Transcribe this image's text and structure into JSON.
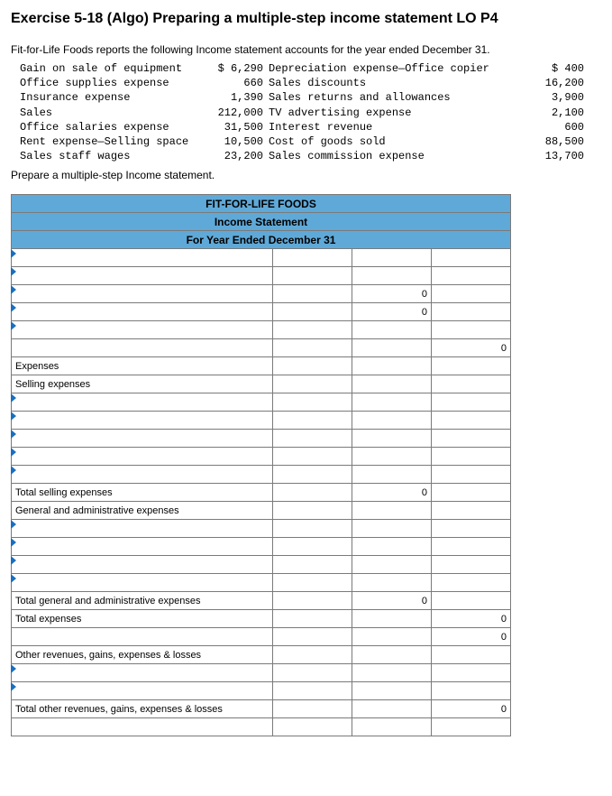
{
  "title": "Exercise 5-18 (Algo) Preparing a multiple-step income statement LO P4",
  "intro": "Fit-for-Life Foods reports the following Income statement accounts for the year ended December 31.",
  "accounts": {
    "left": [
      {
        "label": "Gain on sale of equipment",
        "value": "$ 6,290"
      },
      {
        "label": "Office supplies expense",
        "value": "660"
      },
      {
        "label": "Insurance expense",
        "value": "1,390"
      },
      {
        "label": "Sales",
        "value": "212,000"
      },
      {
        "label": "Office salaries expense",
        "value": "31,500"
      },
      {
        "label": "Rent expense—Selling space",
        "value": "10,500"
      },
      {
        "label": "Sales staff wages",
        "value": "23,200"
      }
    ],
    "right": [
      {
        "label": "Depreciation expense—Office copier",
        "value": "$ 400"
      },
      {
        "label": "Sales discounts",
        "value": "16,200"
      },
      {
        "label": "Sales returns and allowances",
        "value": "3,900"
      },
      {
        "label": "TV advertising expense",
        "value": "2,100"
      },
      {
        "label": "Interest revenue",
        "value": "600"
      },
      {
        "label": "Cost of goods sold",
        "value": "88,500"
      },
      {
        "label": "Sales commission expense",
        "value": "13,700"
      }
    ]
  },
  "prepare": "Prepare a multiple-step Income statement.",
  "statement": {
    "header": {
      "company": "FIT-FOR-LIFE FOODS",
      "title": "Income Statement",
      "period": "For Year Ended December 31"
    },
    "rows": [
      {
        "label": "",
        "drop": true,
        "a": "",
        "b": "",
        "c": ""
      },
      {
        "label": "",
        "drop": true,
        "a": "",
        "b": "",
        "c": ""
      },
      {
        "label": "",
        "drop": true,
        "a": "",
        "b": "0",
        "c": ""
      },
      {
        "label": "",
        "drop": true,
        "a": "",
        "b": "0",
        "c": ""
      },
      {
        "label": "",
        "drop": true,
        "a": "",
        "b": "",
        "c": ""
      },
      {
        "label": "",
        "drop": false,
        "a": "",
        "b": "",
        "c": "0"
      },
      {
        "label": "Expenses",
        "drop": false,
        "a": "",
        "b": "",
        "c": ""
      },
      {
        "label": "Selling expenses",
        "drop": false,
        "a": "",
        "b": "",
        "c": ""
      },
      {
        "label": "",
        "drop": true,
        "a": "",
        "b": "",
        "c": ""
      },
      {
        "label": "",
        "drop": true,
        "a": "",
        "b": "",
        "c": ""
      },
      {
        "label": "",
        "drop": true,
        "a": "",
        "b": "",
        "c": ""
      },
      {
        "label": "",
        "drop": true,
        "a": "",
        "b": "",
        "c": ""
      },
      {
        "label": "",
        "drop": true,
        "a": "",
        "b": "",
        "c": ""
      },
      {
        "label": "Total selling expenses",
        "indent": true,
        "drop": false,
        "a": "",
        "b": "0",
        "c": ""
      },
      {
        "label": "General and administrative expenses",
        "drop": false,
        "a": "",
        "b": "",
        "c": ""
      },
      {
        "label": "",
        "drop": true,
        "a": "",
        "b": "",
        "c": ""
      },
      {
        "label": "",
        "drop": true,
        "a": "",
        "b": "",
        "c": ""
      },
      {
        "label": "",
        "drop": true,
        "a": "",
        "b": "",
        "c": ""
      },
      {
        "label": "",
        "drop": true,
        "a": "",
        "b": "",
        "c": ""
      },
      {
        "label": "Total general and administrative expenses",
        "indent": true,
        "drop": false,
        "a": "",
        "b": "0",
        "c": ""
      },
      {
        "label": "Total expenses",
        "drop": false,
        "a": "",
        "b": "",
        "c": "0"
      },
      {
        "label": "",
        "drop": false,
        "a": "",
        "b": "",
        "c": "0"
      },
      {
        "label": "Other revenues, gains, expenses & losses",
        "drop": false,
        "a": "",
        "b": "",
        "c": ""
      },
      {
        "label": "",
        "drop": true,
        "a": "",
        "b": "",
        "c": ""
      },
      {
        "label": "",
        "drop": true,
        "a": "",
        "b": "",
        "c": ""
      },
      {
        "label": "Total other revenues, gains, expenses & losses",
        "indent": true,
        "drop": false,
        "a": "",
        "b": "",
        "c": "0"
      },
      {
        "label": "",
        "drop": false,
        "a": "",
        "b": "",
        "c": ""
      }
    ]
  },
  "colors": {
    "header_bg": "#5fa9d8",
    "border": "#7a7a7a",
    "drop_arrow": "#1a6fbf"
  }
}
